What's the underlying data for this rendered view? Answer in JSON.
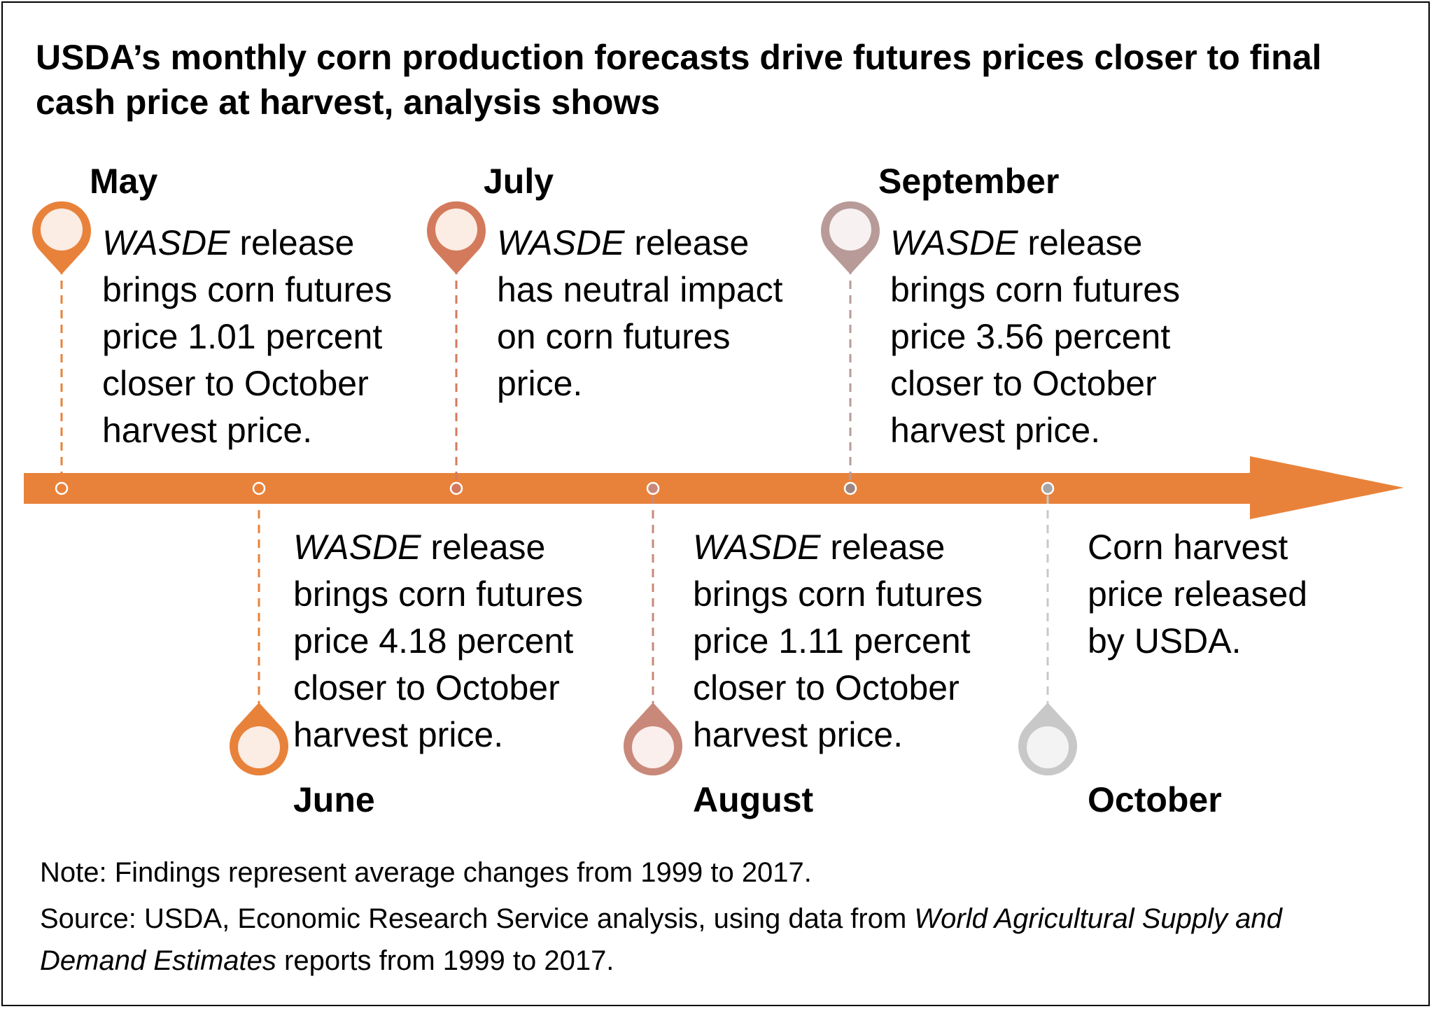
{
  "title": "USDA’s monthly corn production forecasts drive futures prices closer to final cash price at harvest, analysis shows",
  "colors": {
    "arrow": "#E8823A",
    "may": "#E8823A",
    "june": "#E8823A",
    "july": "#D47A5C",
    "august": "#C9897A",
    "september": "#B89B98",
    "october": "#C8C8C8",
    "pin_fill_warm": "#FBECE4",
    "pin_fill_cool": "#F3F3F3"
  },
  "events": [
    {
      "month": "May",
      "italic": "WASDE",
      "text": " release brings corn futures price 1.01 percent closer to October harvest price."
    },
    {
      "month": "June",
      "italic": "WASDE",
      "text": " release brings corn futures price 4.18 percent closer to October harvest price."
    },
    {
      "month": "July",
      "italic": "WASDE",
      "text": " release has neutral impact on corn futures price."
    },
    {
      "month": "August",
      "italic": "WASDE",
      "text": " release brings corn futures price 1.11 percent closer to October harvest price."
    },
    {
      "month": "September",
      "italic": "WASDE",
      "text": " release brings corn futures price 3.56 percent closer to October harvest price."
    },
    {
      "month": "October",
      "italic": "",
      "text": "Corn harvest price released by USDA."
    }
  ],
  "note": "Note: Findings represent average changes from 1999 to 2017.",
  "source": {
    "prefix": "Source: USDA, Economic Research Service analysis, using data from ",
    "italic": "World Agricultural Supply and Demand Estimates",
    "suffix": " reports from 1999 to 2017."
  }
}
